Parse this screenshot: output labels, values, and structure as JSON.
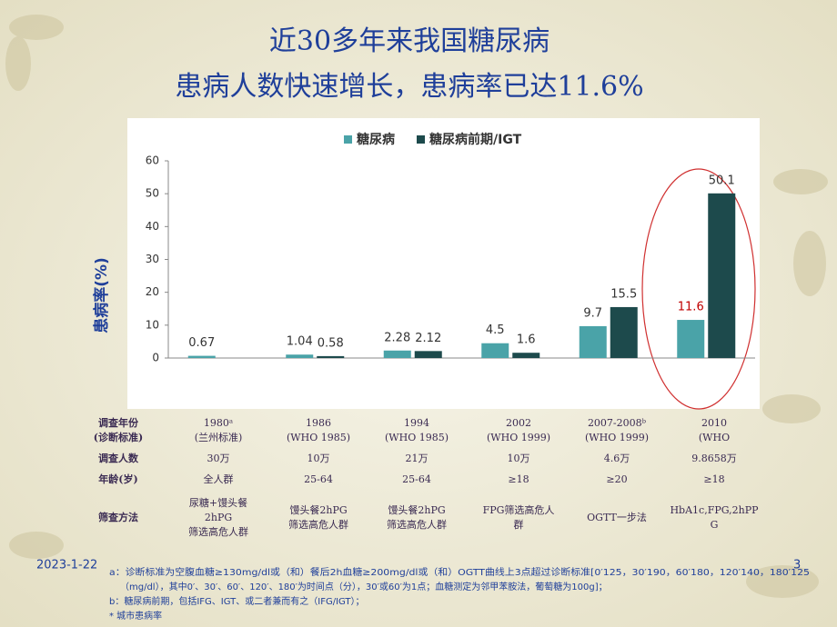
{
  "title_lines": [
    "近30多年来我国糖尿病",
    "患病人数快速增长，患病率已达11.6%"
  ],
  "chart_data": {
    "type": "bar",
    "ylabel": "患病率(%)",
    "categories": [
      null,
      null,
      null,
      null,
      null,
      null
    ],
    "series": [
      {
        "name": "糖尿病",
        "color": "#4aa3a8",
        "values": [
          0.67,
          1.04,
          2.28,
          4.5,
          9.7,
          11.6
        ],
        "label_colors": [
          "#333333",
          "#333333",
          "#333333",
          "#333333",
          "#333333",
          "#c00000"
        ]
      },
      {
        "name": "糖尿病前期/IGT",
        "color": "#1d4a4c",
        "values": [
          null,
          0.58,
          2.12,
          1.6,
          15.5,
          50.1
        ],
        "label_colors": [
          "#333333",
          "#333333",
          "#333333",
          "#333333",
          "#333333",
          "#333333"
        ]
      }
    ],
    "ylim": [
      0,
      60
    ],
    "yticks": [
      0,
      10,
      20,
      30,
      40,
      50,
      60
    ],
    "legend": "top"
  },
  "table": {
    "rows": [
      {
        "label": [
          "调查年份",
          "(诊断标准)"
        ],
        "cells": [
          [
            "1980ᵃ",
            "(兰州标准)"
          ],
          [
            "1986",
            "(WHO 1985)"
          ],
          [
            "1994",
            "(WHO 1985)"
          ],
          [
            "2002",
            "(WHO 1999)"
          ],
          [
            "2007-2008ᵇ",
            "(WHO 1999)"
          ],
          [
            "2010",
            "(WHO"
          ]
        ]
      },
      {
        "label": [
          "调查人数"
        ],
        "cells": [
          [
            "30万"
          ],
          [
            "10万"
          ],
          [
            "21万"
          ],
          [
            "10万"
          ],
          [
            "4.6万"
          ],
          [
            "9.8658万"
          ]
        ]
      },
      {
        "label": [
          "年龄(岁)"
        ],
        "cells": [
          [
            "全人群"
          ],
          [
            "25-64"
          ],
          [
            "25-64"
          ],
          [
            "≥18"
          ],
          [
            "≥20"
          ],
          [
            "≥18"
          ]
        ]
      },
      {
        "label": [
          "筛查方法"
        ],
        "cells": [
          [
            "尿糖+馒头餐",
            "2hPG",
            "筛选高危人群"
          ],
          [
            "馒头餐2hPG",
            "筛选高危人群"
          ],
          [
            "馒头餐2hPG",
            "筛选高危人群"
          ],
          [
            "FPG筛选高危人",
            "群"
          ],
          [
            "OGTT一步法"
          ],
          [
            "HbA1c,FPG,2hPP",
            "G"
          ]
        ]
      }
    ]
  },
  "footer": {
    "date": "2023-1-22",
    "page": "3"
  },
  "footnotes": [
    "a：诊断标准为空腹血糖≥130mg/dl或（和）餐后2h血糖≥200mg/dl或（和）OGTT曲线上3点超过诊断标准[0′125，30′190，60′180，120′140，180′125",
    "（mg/dl），其中0′、30′、60′、120′、180′为时间点（分），30′或60′为1点；血糖测定为邻甲苯胺法，葡萄糖为100g]；",
    "b：糖尿病前期，包括IFG、IGT、或二者兼而有之（IFG/IGT）；",
    "* 城市患病率"
  ]
}
